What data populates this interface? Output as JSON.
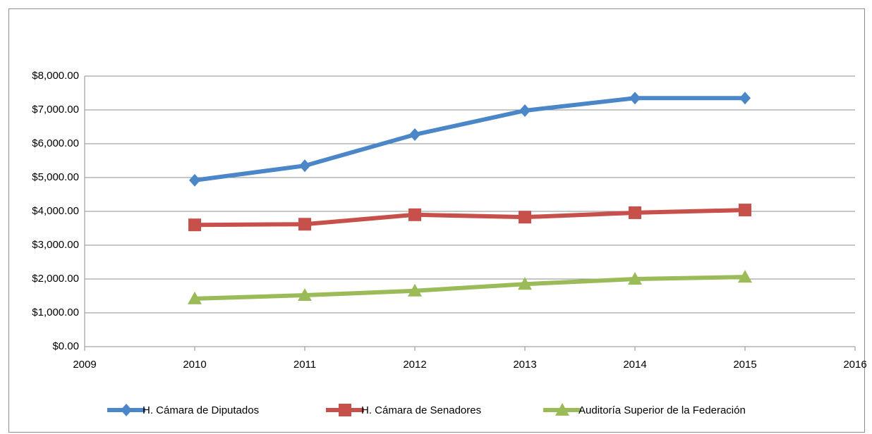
{
  "chart_data": {
    "type": "line",
    "x": [
      2010,
      2011,
      2012,
      2013,
      2014,
      2015
    ],
    "xlim": [
      2009,
      2016
    ],
    "xticks": [
      2009,
      2010,
      2011,
      2012,
      2013,
      2014,
      2015,
      2016
    ],
    "ylim": [
      0,
      8000
    ],
    "yticks": [
      {
        "value": 0,
        "label": "$0.00"
      },
      {
        "value": 1000,
        "label": "$1,000.00"
      },
      {
        "value": 2000,
        "label": "$2,000.00"
      },
      {
        "value": 3000,
        "label": "$3,000.00"
      },
      {
        "value": 4000,
        "label": "$4,000.00"
      },
      {
        "value": 5000,
        "label": "$5,000.00"
      },
      {
        "value": 6000,
        "label": "$6,000.00"
      },
      {
        "value": 7000,
        "label": "$7,000.00"
      },
      {
        "value": 8000,
        "label": "$8,000.00"
      }
    ],
    "grid": true,
    "legend": "bottom",
    "series": [
      {
        "name": "H. Cámara de Diputados",
        "color": "#4a86c8",
        "marker": "diamond",
        "values": [
          4920,
          5350,
          6270,
          6980,
          7350,
          7350
        ]
      },
      {
        "name": "H. Cámara de Senadores",
        "color": "#c8504b",
        "marker": "square",
        "values": [
          3600,
          3620,
          3900,
          3830,
          3960,
          4040
        ]
      },
      {
        "name": "Auditoría Superior de la Federación",
        "color": "#9bbb59",
        "marker": "triangle",
        "values": [
          1420,
          1520,
          1650,
          1850,
          2000,
          2060
        ]
      }
    ]
  }
}
